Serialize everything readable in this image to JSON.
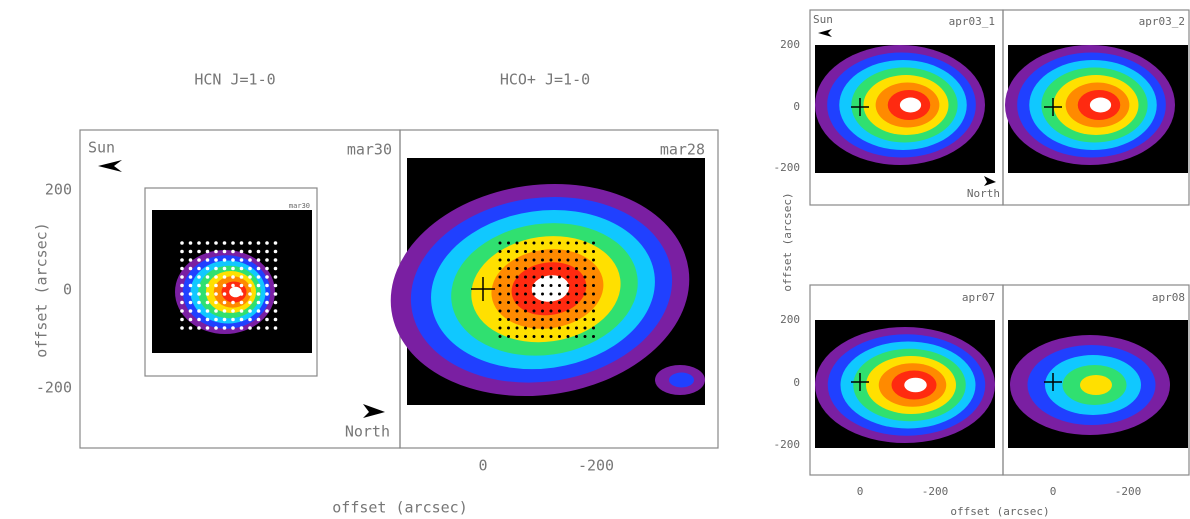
{
  "left_figure": {
    "titles": [
      "HCN J=1-0",
      "HCO+ J=1-0"
    ],
    "panels": [
      "mar30",
      "mar28"
    ],
    "inset_label": "mar30",
    "sun": "Sun",
    "north": "North",
    "yticks": [
      "200",
      "0",
      "-200"
    ],
    "xticks": [
      "0",
      "-200"
    ],
    "ylabel": "offset (arcsec)",
    "xlabel": "offset (arcsec)"
  },
  "right_figure": {
    "panels": [
      "apr03_1",
      "apr03_2",
      "apr07",
      "apr08"
    ],
    "sun": "Sun",
    "north": "North",
    "yticks": [
      "200",
      "0",
      "-200"
    ],
    "xticks": [
      "0",
      "-200"
    ],
    "ylabel": "offset (arcsec)",
    "xlabel": "offset (arcsec)"
  }
}
